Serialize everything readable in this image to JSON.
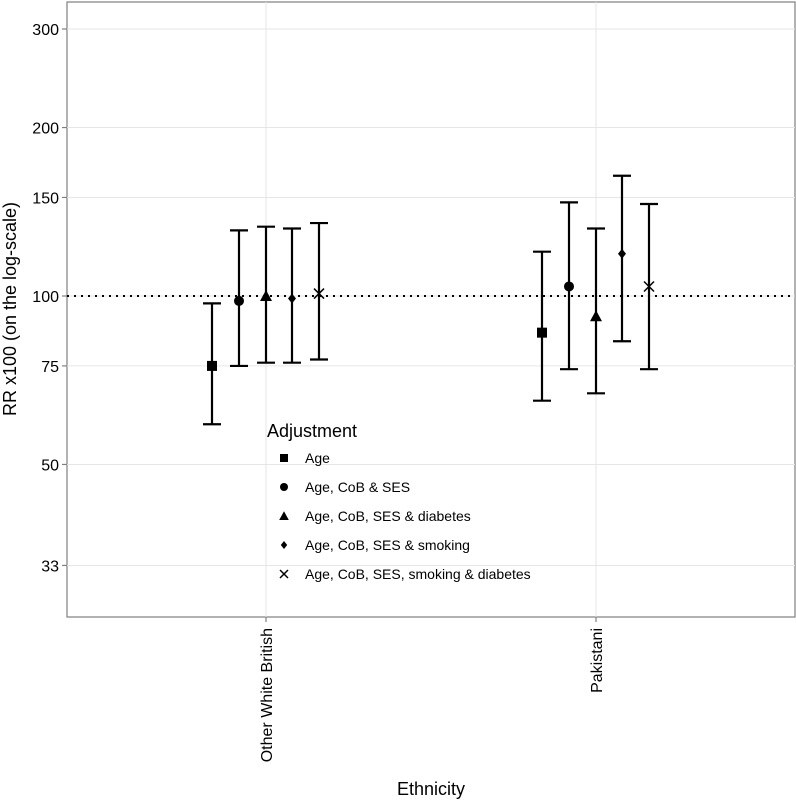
{
  "chart_data": {
    "type": "scatter",
    "xlabel": "Ethnicity",
    "ylabel": "RR x100 (on the log-scale)",
    "y_scale": "log",
    "ylim": [
      28,
      330
    ],
    "y_ticks": [
      33,
      50,
      75,
      100,
      150,
      200,
      300
    ],
    "reference_line": 100,
    "grid": true,
    "categories": [
      "Other White British",
      "Pakistani"
    ],
    "legend": {
      "title": "Adjustment",
      "placement": "inside-bottom-center"
    },
    "series": [
      {
        "name": "Age",
        "marker": "square",
        "values": [
          75,
          86
        ],
        "lower": [
          59,
          65
        ],
        "upper": [
          97,
          120
        ]
      },
      {
        "name": "Age, CoB & SES",
        "marker": "circle",
        "values": [
          98,
          104
        ],
        "lower": [
          75,
          74
        ],
        "upper": [
          131,
          147
        ]
      },
      {
        "name": "Age, CoB, SES & diabetes",
        "marker": "triangle",
        "values": [
          100,
          92
        ],
        "lower": [
          76,
          67
        ],
        "upper": [
          133,
          132
        ]
      },
      {
        "name": "Age, CoB, SES & smoking",
        "marker": "diamond",
        "values": [
          99,
          119
        ],
        "lower": [
          76,
          83
        ],
        "upper": [
          132,
          164
        ]
      },
      {
        "name": "Age, CoB, SES, smoking & diabetes",
        "marker": "x",
        "values": [
          101,
          104
        ],
        "lower": [
          77,
          74
        ],
        "upper": [
          135,
          146
        ]
      }
    ]
  }
}
